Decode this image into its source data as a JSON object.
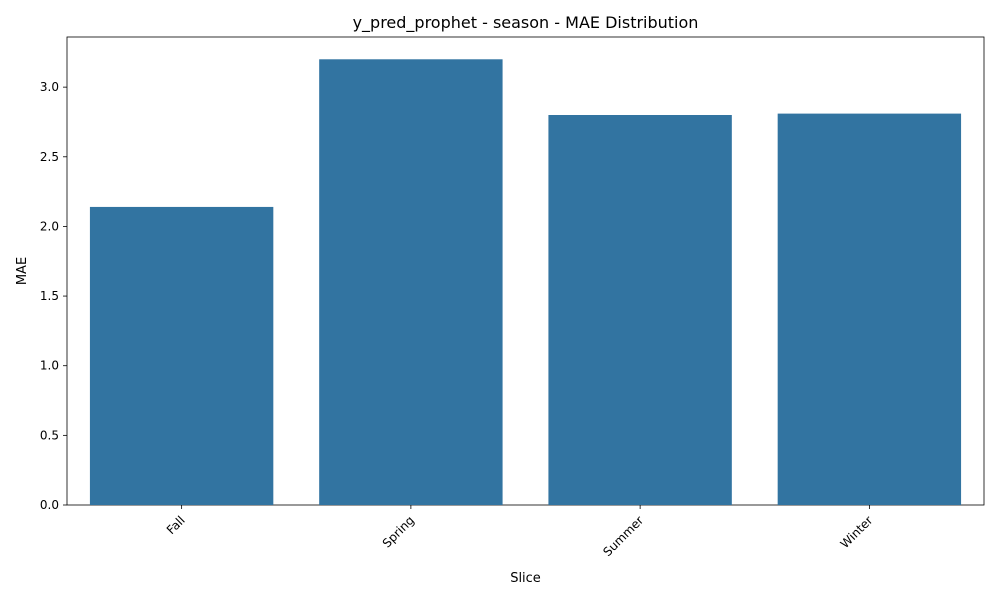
{
  "chart_data": {
    "type": "bar",
    "title": "y_pred_prophet - season - MAE Distribution",
    "xlabel": "Slice",
    "ylabel": "MAE",
    "categories": [
      "Fall",
      "Spring",
      "Summer",
      "Winter"
    ],
    "values": [
      2.14,
      3.2,
      2.8,
      2.81
    ],
    "ylim": [
      0,
      3.36
    ],
    "yticks": [
      0.0,
      0.5,
      1.0,
      1.5,
      2.0,
      2.5,
      3.0
    ],
    "ytick_labels": [
      "0.0",
      "0.5",
      "1.0",
      "1.5",
      "2.0",
      "2.5",
      "3.0"
    ],
    "x_tick_rotation_deg": 45,
    "bar_color": "#3274a1",
    "grid": false,
    "legend": "none"
  }
}
